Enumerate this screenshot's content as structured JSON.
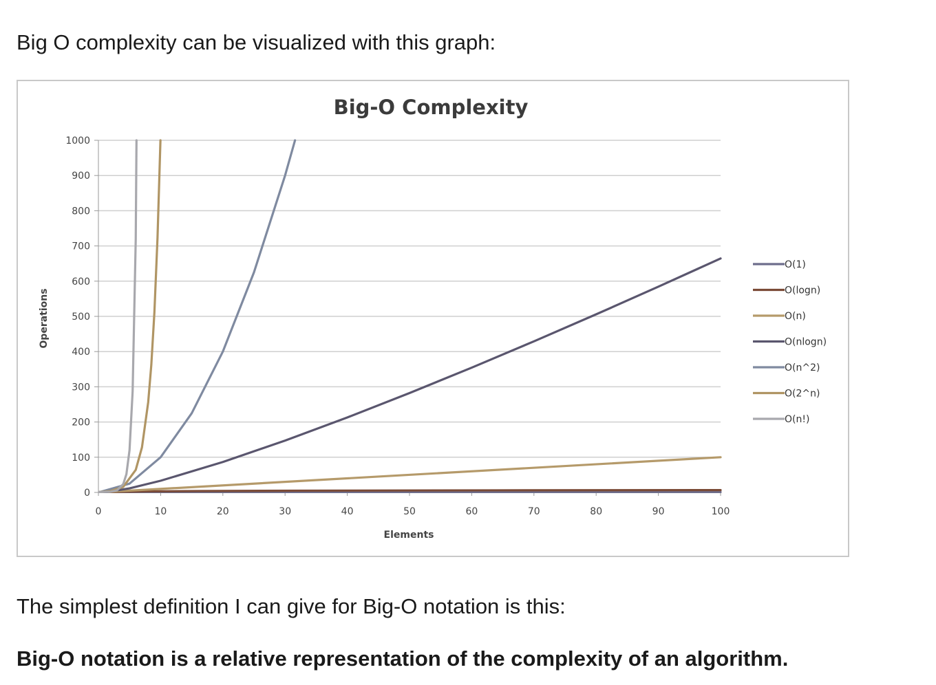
{
  "intro_text": "Big O complexity can be visualized with this graph:",
  "paragraph": "The simplest definition I can give for Big-O notation is this:",
  "bold_statement": "Big-O notation is a relative representation of the complexity of an algorithm.",
  "chart_data": {
    "type": "line",
    "title": "Big-O Complexity",
    "xlabel": "Elements",
    "ylabel": "Operations",
    "xlim": [
      0,
      100
    ],
    "ylim": [
      0,
      1000
    ],
    "x_ticks": [
      0,
      10,
      20,
      30,
      40,
      50,
      60,
      70,
      80,
      90,
      100
    ],
    "y_ticks": [
      0,
      100,
      200,
      300,
      400,
      500,
      600,
      700,
      800,
      900,
      1000
    ],
    "grid": true,
    "legend_position": "right",
    "series": [
      {
        "name": "O(1)",
        "color": "#6e6e8c",
        "x": [
          0,
          100
        ],
        "y": [
          1,
          1
        ]
      },
      {
        "name": "O(logn)",
        "color": "#7a4a36",
        "x": [
          1,
          2,
          4,
          8,
          16,
          32,
          64,
          100
        ],
        "y": [
          0,
          1,
          2,
          3,
          4,
          5,
          6,
          6.6
        ]
      },
      {
        "name": "O(n)",
        "color": "#b59a6a",
        "x": [
          0,
          100
        ],
        "y": [
          0,
          100
        ]
      },
      {
        "name": "O(nlogn)",
        "color": "#5a566e",
        "x": [
          1,
          5,
          10,
          20,
          30,
          40,
          50,
          60,
          70,
          80,
          90,
          100
        ],
        "y": [
          0,
          11.6,
          33.2,
          86.4,
          147.2,
          212.9,
          282.2,
          354.4,
          429.1,
          505.8,
          584.3,
          664.4
        ]
      },
      {
        "name": "O(n^2)",
        "color": "#7f8aa0",
        "x": [
          0,
          5,
          10,
          15,
          20,
          25,
          30,
          31.6
        ],
        "y": [
          0,
          25,
          100,
          225,
          400,
          625,
          900,
          1000
        ]
      },
      {
        "name": "O(2^n)",
        "color": "#b09564",
        "x": [
          0,
          2,
          4,
          6,
          7,
          8,
          8.5,
          9,
          9.5,
          9.97
        ],
        "y": [
          1,
          4,
          16,
          64,
          128,
          256,
          362,
          512,
          724,
          1000
        ]
      },
      {
        "name": "O(n!)",
        "color": "#a8a8ad",
        "x": [
          0,
          2,
          3,
          4,
          4.5,
          5,
          5.5,
          6.0,
          6.12
        ],
        "y": [
          1,
          2,
          6,
          24,
          52,
          120,
          287,
          720,
          1000
        ]
      }
    ]
  }
}
